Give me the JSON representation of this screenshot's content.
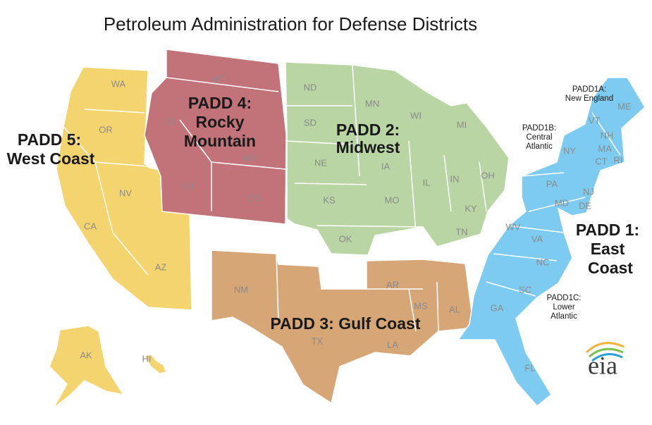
{
  "title": "Petroleum Administration for Defense Districts",
  "districts": [
    {
      "label": [
        "PADD 1:",
        "East",
        "Coast"
      ],
      "color": "#7dcbf0",
      "states": [
        "ME",
        "VT",
        "NH",
        "MA",
        "CT",
        "RI",
        "NY",
        "PA",
        "NJ",
        "MD",
        "DE",
        "WV",
        "VA",
        "NC",
        "SC",
        "GA",
        "FL"
      ]
    },
    {
      "label": [
        "PADD 2:",
        "Midwest"
      ],
      "color": "#b9d5a3",
      "states": [
        "ND",
        "SD",
        "NE",
        "KS",
        "OK",
        "MN",
        "IA",
        "MO",
        "WI",
        "IL",
        "MI",
        "IN",
        "OH",
        "KY",
        "TN"
      ]
    },
    {
      "label": [
        "PADD 3: Gulf Coast"
      ],
      "color": "#d6a676",
      "states": [
        "NM",
        "TX",
        "AR",
        "LA",
        "MS",
        "AL"
      ]
    },
    {
      "label": [
        "PADD 4:",
        "Rocky",
        "Mountain"
      ],
      "color": "#c17379",
      "states": [
        "MT",
        "ID",
        "WY",
        "UT",
        "CO"
      ]
    },
    {
      "label": [
        "PADD 5:",
        "West Coast"
      ],
      "color": "#f4d46e",
      "states": [
        "WA",
        "OR",
        "CA",
        "NV",
        "AZ",
        "AK",
        "HI"
      ]
    }
  ],
  "subdistricts": [
    {
      "label": [
        "PADD1A:",
        "New England"
      ]
    },
    {
      "label": [
        "PADD1B:",
        "Central",
        "Atlantic"
      ]
    },
    {
      "label": [
        "PADD1C:",
        "Lower",
        "Atlantic"
      ]
    }
  ],
  "logo": "eia"
}
